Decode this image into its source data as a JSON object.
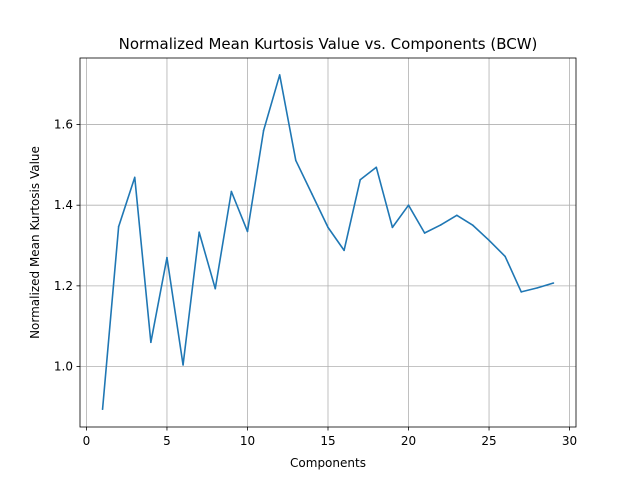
{
  "chart_data": {
    "type": "line",
    "title": "Normalized Mean Kurtosis Value vs. Components (BCW)",
    "xlabel": "Components",
    "ylabel": "Normalized Mean Kurtosis Value",
    "xlim": [
      -0.4,
      30.4
    ],
    "ylim": [
      0.85,
      1.765
    ],
    "x_ticks": [
      0,
      5,
      10,
      15,
      20,
      25,
      30
    ],
    "y_ticks": [
      1.0,
      1.2,
      1.4,
      1.6
    ],
    "x_tick_labels": [
      "0",
      "5",
      "10",
      "15",
      "20",
      "25",
      "30"
    ],
    "y_tick_labels": [
      "1.0",
      "1.2",
      "1.4",
      "1.6"
    ],
    "grid": true,
    "series": [
      {
        "color": "#1f77b4",
        "x": [
          1,
          2,
          3,
          4,
          5,
          6,
          7,
          8,
          9,
          10,
          11,
          12,
          13,
          14,
          15,
          16,
          17,
          18,
          19,
          20,
          21,
          22,
          23,
          24,
          25,
          26,
          27,
          28,
          29
        ],
        "y": [
          0.894,
          1.347,
          1.469,
          1.06,
          1.27,
          1.004,
          1.333,
          1.193,
          1.434,
          1.335,
          1.585,
          1.723,
          1.511,
          1.428,
          1.345,
          1.288,
          1.463,
          1.494,
          1.345,
          1.4,
          1.331,
          1.351,
          1.375,
          1.35,
          1.313,
          1.273,
          1.185,
          1.195,
          1.207
        ]
      }
    ]
  }
}
